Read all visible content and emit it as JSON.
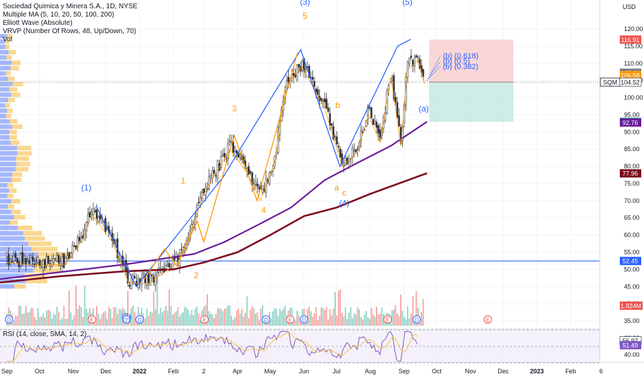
{
  "legend": {
    "symbol": "Sociedad Quimica y Minera S.A., 1D, NYSE",
    "ma": "Multiple MA (5, 10, 20, 50, 100, 200)",
    "elliott": "Elliott Wave (Absolute)",
    "vrvp": "VRVP (Number Of Rows, 48, Up/Down, 70)",
    "vol": "Vol",
    "rsi": "RSI (14, close, SMA, 14, 2)"
  },
  "colors": {
    "up": "#26a69a",
    "down": "#ef5350",
    "wick": "#333333",
    "blue": "#2962ff",
    "orange": "#ff9800",
    "purple": "#6a1b9a",
    "maroon": "#7b0d1e",
    "rsi": "#7e57c2",
    "rsi_ma": "#f7c245",
    "vol_up": "#8fd1c5",
    "vol_down": "#f4a3a0",
    "profile_up": "#5b7cfa",
    "profile_down": "#f7b733"
  },
  "chart_data": {
    "type": "candlestick",
    "currency": "USD",
    "y_ticks": [
      "120.00",
      "115.00",
      "110.00",
      "105.00",
      "100.00",
      "95.00",
      "90.00",
      "85.00",
      "80.00",
      "75.00",
      "70.00",
      "65.00",
      "60.00",
      "55.00",
      "50.00",
      "45.00",
      "40.00",
      "35.00"
    ],
    "x_ticks": [
      "Sep",
      "Oct",
      "Nov",
      "Dec",
      "2022",
      "Feb",
      "2",
      "Apr",
      "May",
      "Jun",
      "Jul",
      "Aug",
      "Sep",
      "Oct",
      "Nov",
      "Dec",
      "2023",
      "Feb",
      "6"
    ],
    "price_labels": [
      {
        "text": "116.91",
        "value": 116.91,
        "bg": "#ef5350"
      },
      {
        "text": "107.26",
        "value": 107.26,
        "bg": "#787b86"
      },
      {
        "text": "106.58",
        "value": 106.58,
        "bg": "#ff9800"
      },
      {
        "text": "104.52",
        "value": 104.52,
        "bg": "#ffffff",
        "prefix": "SQM"
      },
      {
        "text": "92.96",
        "value": 92.96,
        "bg": "#26a69a"
      },
      {
        "text": "92.76",
        "value": 92.76,
        "bg": "#6a1b9a"
      },
      {
        "text": "77.96",
        "value": 77.96,
        "bg": "#7b0d1e"
      },
      {
        "text": "52.45",
        "value": 52.45,
        "bg": "#2962ff"
      }
    ],
    "volume_label": "1.924M",
    "rsi_labels": [
      {
        "text": "56.97",
        "value": 56.97,
        "bg": "#ffffff"
      },
      {
        "text": "51.49",
        "value": 51.49,
        "bg": "#7e57c2"
      }
    ],
    "rsi_ticks": [
      "60.00",
      "40.00"
    ],
    "horizontal_line": 52.45,
    "position_box": {
      "entry": 104.52,
      "stop": 116.91,
      "target": 92.96
    },
    "fib_labels": [
      "(b) (0.618)",
      "(b) (0.5)",
      "(b) (0.382)"
    ],
    "wave_labels": [
      {
        "text": "(1)",
        "color": "blue",
        "x": "2021-11-13",
        "y": 73
      },
      {
        "text": "(2)",
        "color": "blue",
        "x": "2021-12-20",
        "y": 35.5
      },
      {
        "text": "(3)",
        "color": "blue",
        "x": "2022-06-02",
        "y": 127
      },
      {
        "text": "5",
        "color": "orange",
        "x": "2022-06-02",
        "y": 123
      },
      {
        "text": "3",
        "color": "orange",
        "x": "2022-03-29",
        "y": 96
      },
      {
        "text": "4",
        "color": "orange",
        "x": "2022-04-25",
        "y": 66.5
      },
      {
        "text": "1",
        "color": "orange",
        "x": "2022-02-10",
        "y": 75
      },
      {
        "text": "2",
        "color": "orange",
        "x": "2022-02-22",
        "y": 47.5
      },
      {
        "text": "b",
        "color": "orange",
        "x": "2022-07-02",
        "y": 97
      },
      {
        "text": "a",
        "color": "orange",
        "x": "2022-07-01",
        "y": 73
      },
      {
        "text": "c",
        "color": "orange",
        "x": "2022-07-08",
        "y": 71.5
      },
      {
        "text": "(4)",
        "color": "blue",
        "x": "2022-07-08",
        "y": 68.5
      },
      {
        "text": "(5)",
        "color": "blue",
        "x": "2022-09-04",
        "y": 127
      },
      {
        "text": "(a)",
        "color": "blue",
        "x": "2022-09-19",
        "y": 96
      }
    ],
    "wave_blue_path": [
      [
        "2021-11-22",
        68.5
      ],
      [
        "2021-12-29",
        45
      ],
      [
        "2022-03-19",
        77
      ],
      [
        "2022-05-29",
        114
      ],
      [
        "2022-07-04",
        80
      ],
      [
        "2022-08-26",
        115
      ],
      [
        "2022-09-07",
        117
      ]
    ],
    "wave_orange_path": [
      [
        "2022-01-05",
        47
      ],
      [
        "2022-01-24",
        56
      ],
      [
        "2022-02-04",
        51
      ],
      [
        "2022-02-23",
        64
      ],
      [
        "2022-02-29",
        58
      ],
      [
        "2022-03-29",
        89
      ],
      [
        "2022-04-19",
        70
      ],
      [
        "2022-05-26",
        113
      ]
    ],
    "ma100": [
      [
        "2021-08-20",
        47
      ],
      [
        "2021-10-01",
        48.5
      ],
      [
        "2021-11-10",
        50
      ],
      [
        "2021-12-20",
        51.5
      ],
      [
        "2022-01-20",
        53
      ],
      [
        "2022-02-20",
        54.5
      ],
      [
        "2022-03-20",
        58
      ],
      [
        "2022-04-20",
        63
      ],
      [
        "2022-05-20",
        68
      ],
      [
        "2022-06-20",
        76
      ],
      [
        "2022-07-20",
        81
      ],
      [
        "2022-08-20",
        86
      ],
      [
        "2022-09-22",
        93
      ]
    ],
    "ma200": [
      [
        "2021-08-20",
        46
      ],
      [
        "2021-10-20",
        48
      ],
      [
        "2021-12-20",
        49.5
      ],
      [
        "2022-02-01",
        50
      ],
      [
        "2022-03-01",
        52
      ],
      [
        "2022-04-01",
        55
      ],
      [
        "2022-05-01",
        60
      ],
      [
        "2022-06-01",
        65.5
      ],
      [
        "2022-07-01",
        68
      ],
      [
        "2022-08-01",
        72
      ],
      [
        "2022-09-22",
        78
      ]
    ],
    "candles_anchor": [
      [
        "2021-09-01",
        53
      ],
      [
        "2021-10-01",
        52
      ],
      [
        "2021-10-25",
        52.5
      ],
      [
        "2021-11-10",
        60
      ],
      [
        "2021-11-18",
        67
      ],
      [
        "2021-12-07",
        59
      ],
      [
        "2021-12-22",
        47
      ],
      [
        "2022-01-10",
        47
      ],
      [
        "2022-02-05",
        53
      ],
      [
        "2022-02-15",
        60
      ],
      [
        "2022-03-01",
        73
      ],
      [
        "2022-03-25",
        86
      ],
      [
        "2022-04-10",
        79
      ],
      [
        "2022-04-22",
        71
      ],
      [
        "2022-05-05",
        82
      ],
      [
        "2022-05-15",
        104
      ],
      [
        "2022-05-30",
        110
      ],
      [
        "2022-06-20",
        98
      ],
      [
        "2022-07-06",
        81
      ],
      [
        "2022-07-20",
        85
      ],
      [
        "2022-07-30",
        96
      ],
      [
        "2022-08-10",
        88
      ],
      [
        "2022-08-20",
        107
      ],
      [
        "2022-08-29",
        87
      ],
      [
        "2022-09-04",
        109
      ],
      [
        "2022-09-14",
        112
      ],
      [
        "2022-09-20",
        105
      ]
    ]
  }
}
